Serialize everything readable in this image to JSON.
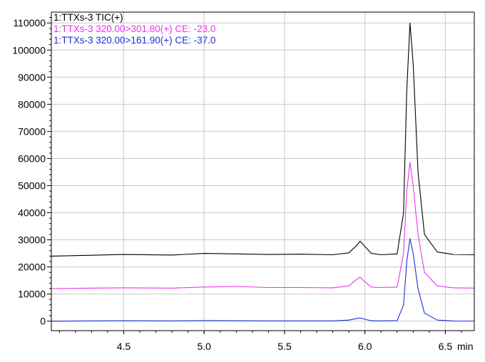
{
  "chart_data": {
    "type": "line",
    "title": "",
    "xlabel": "",
    "ylabel": "",
    "x_unit": "min",
    "xlim": [
      4.05,
      6.68
    ],
    "ylim": [
      -3500,
      114000
    ],
    "x_ticks": [
      4.5,
      5.0,
      5.5,
      6.0,
      6.5
    ],
    "x_tick_labels": [
      "4.5",
      "5.0",
      "5.5",
      "6.0",
      "6.5"
    ],
    "y_ticks": [
      0,
      10000,
      20000,
      30000,
      40000,
      50000,
      60000,
      70000,
      80000,
      90000,
      100000,
      110000
    ],
    "y_tick_labels": [
      "0",
      "10000",
      "20000",
      "30000",
      "40000",
      "50000",
      "60000",
      "70000",
      "80000",
      "90000",
      "100000",
      "110000"
    ],
    "grid": true,
    "legend_placement": "top-left",
    "series": [
      {
        "name": "1:TTXs-3 TIC(+)",
        "color": "#000000",
        "x": [
          4.05,
          4.3,
          4.5,
          4.8,
          5.0,
          5.2,
          5.4,
          5.6,
          5.8,
          5.9,
          5.95,
          5.97,
          6.0,
          6.04,
          6.1,
          6.2,
          6.24,
          6.26,
          6.28,
          6.3,
          6.33,
          6.37,
          6.45,
          6.55,
          6.68
        ],
        "y": [
          24000,
          24300,
          24600,
          24400,
          25000,
          24800,
          24600,
          24700,
          24500,
          25200,
          28000,
          29500,
          27500,
          25000,
          24500,
          24800,
          40000,
          85000,
          110000,
          95000,
          55000,
          32000,
          25500,
          24600,
          24500
        ]
      },
      {
        "name": "1:TTXs-3 320.00>301.80(+) CE: -23.0",
        "color": "#e834e8",
        "x": [
          4.05,
          4.3,
          4.5,
          4.8,
          5.0,
          5.2,
          5.4,
          5.6,
          5.8,
          5.9,
          5.95,
          5.97,
          6.0,
          6.04,
          6.1,
          6.2,
          6.24,
          6.26,
          6.28,
          6.3,
          6.33,
          6.37,
          6.45,
          6.55,
          6.68
        ],
        "y": [
          12000,
          12200,
          12300,
          12200,
          12600,
          12800,
          12400,
          12400,
          12300,
          13000,
          15500,
          16200,
          14500,
          12600,
          12400,
          12600,
          25000,
          48000,
          58500,
          50000,
          32000,
          18000,
          13000,
          12300,
          12200
        ]
      },
      {
        "name": "1:TTXs-3 320.00>161.90(+) CE: -37.0",
        "color": "#1e2fd6",
        "x": [
          4.05,
          4.3,
          4.5,
          4.8,
          5.0,
          5.2,
          5.4,
          5.6,
          5.8,
          5.9,
          5.95,
          5.97,
          6.0,
          6.04,
          6.1,
          6.2,
          6.24,
          6.26,
          6.28,
          6.3,
          6.33,
          6.37,
          6.45,
          6.55,
          6.68
        ],
        "y": [
          0,
          100,
          150,
          100,
          200,
          150,
          100,
          100,
          100,
          400,
          1000,
          1200,
          700,
          150,
          100,
          200,
          6000,
          22000,
          30500,
          25000,
          12000,
          3000,
          400,
          100,
          50
        ]
      }
    ]
  }
}
